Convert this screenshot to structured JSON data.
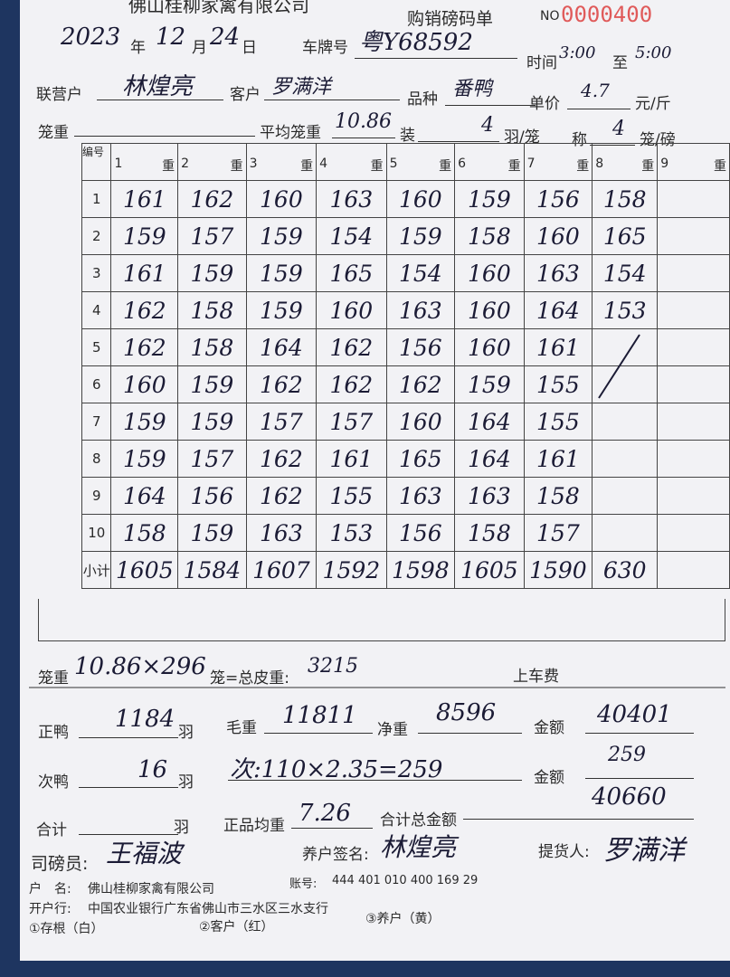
{
  "header": {
    "company": "佛山桂柳家禽有限公司",
    "title": "购销磅码单",
    "no_label": "NO",
    "no": "0000400"
  },
  "date": {
    "year": "2023",
    "year_unit": "年",
    "month": "12",
    "month_unit": "月",
    "day": "24",
    "day_unit": "日"
  },
  "plate": {
    "label": "车牌号",
    "value": "粤Y68592"
  },
  "time": {
    "label": "时间",
    "start": "3:00",
    "to": "至",
    "end": "5:00"
  },
  "partner": {
    "label": "联营户",
    "value": "林煌亮"
  },
  "customer": {
    "label": "客户",
    "value": "罗满洋"
  },
  "breed": {
    "label": "品种",
    "value": "番鸭"
  },
  "price": {
    "label": "单价",
    "value": "4.7",
    "unit": "元/斤"
  },
  "cage": {
    "label": "笼重",
    "avg_label": "平均笼重",
    "avg": "10.86",
    "load_label": "装",
    "load": "4",
    "load_unit": "羽/笼",
    "weigh_label": "称",
    "weigh": "4",
    "weigh_unit": "笼/磅"
  },
  "table": {
    "no_header": "编号",
    "columns": [
      "1",
      "2",
      "3",
      "4",
      "5",
      "6",
      "7",
      "8",
      "9"
    ],
    "weight_unit": "重",
    "row_labels": [
      "1",
      "2",
      "3",
      "4",
      "5",
      "6",
      "7",
      "8",
      "9",
      "10",
      "小计"
    ],
    "rows": [
      [
        "161",
        "162",
        "160",
        "163",
        "160",
        "159",
        "156",
        "158"
      ],
      [
        "159",
        "157",
        "159",
        "154",
        "159",
        "158",
        "160",
        "165"
      ],
      [
        "161",
        "159",
        "159",
        "165",
        "154",
        "160",
        "163",
        "154"
      ],
      [
        "162",
        "158",
        "159",
        "160",
        "163",
        "160",
        "164",
        "153"
      ],
      [
        "162",
        "158",
        "164",
        "162",
        "156",
        "160",
        "161"
      ],
      [
        "160",
        "159",
        "162",
        "162",
        "162",
        "159",
        "155"
      ],
      [
        "159",
        "159",
        "157",
        "157",
        "160",
        "164",
        "155"
      ],
      [
        "159",
        "157",
        "162",
        "161",
        "165",
        "164",
        "161"
      ],
      [
        "164",
        "156",
        "162",
        "155",
        "163",
        "163",
        "158"
      ],
      [
        "158",
        "159",
        "163",
        "153",
        "156",
        "158",
        "157"
      ],
      [
        "1605",
        "1584",
        "1607",
        "1592",
        "1598",
        "1605",
        "1590",
        "630"
      ]
    ]
  },
  "summary": {
    "cage_label": "笼重",
    "cage_calc": "10.86×296",
    "tare_label": "笼=总皮重:",
    "tare": "3215",
    "loading_fee_label": "上车费",
    "good_label": "正鸭",
    "good": "1184",
    "good_unit": "羽",
    "gross_label": "毛重",
    "gross": "11811",
    "net_label": "净重",
    "net": "8596",
    "amount_label": "金额",
    "amount": "40401",
    "second_label": "次鸭",
    "second": "16",
    "second_unit": "羽",
    "second_calc": "次:110×2.35=259",
    "amount2_label": "金额",
    "amount2": "259",
    "total_label": "合计",
    "total_unit": "羽",
    "avg_label": "正品均重",
    "avg": "7.26",
    "grand_label": "合计总金额",
    "grand": "40660"
  },
  "signatures": {
    "weigher_label": "司磅员:",
    "weigher": "王福波",
    "farmer_label": "养户签名:",
    "farmer": "林煌亮",
    "pickup_label": "提货人:",
    "pickup": "罗满洋"
  },
  "footer": {
    "name_label": "户　名:",
    "name": "佛山桂柳家禽有限公司",
    "account_label": "账号:",
    "account": "444 401 010 400 169 29",
    "bank_label": "开户行:",
    "bank": "中国农业银行广东省佛山市三水区三水支行",
    "copies": [
      "①存根（白）",
      "②客户（红）",
      "③养户（黄）"
    ]
  }
}
